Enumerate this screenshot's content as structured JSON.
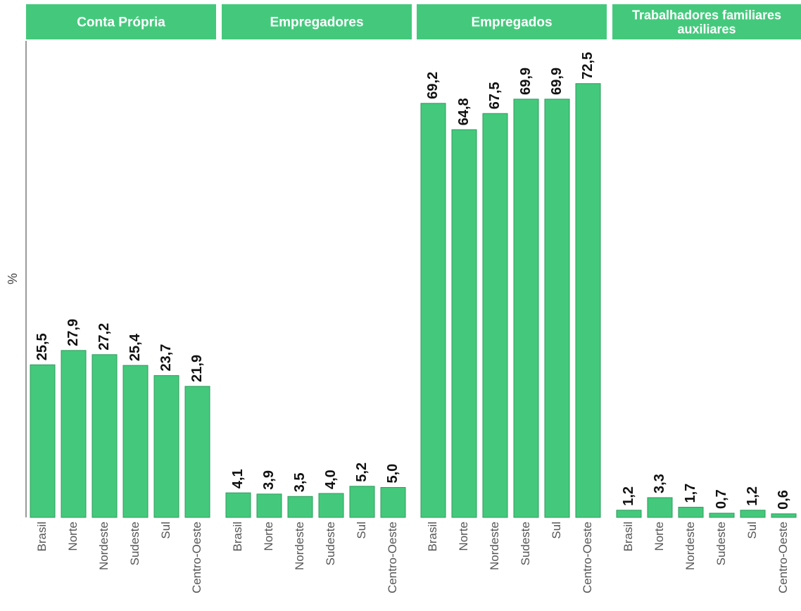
{
  "chart_data": {
    "type": "bar",
    "ylabel": "%",
    "ylim": [
      0,
      80
    ],
    "grid": false,
    "colors": {
      "bar": "#44c97c",
      "bar_edge": "#2e9a5c",
      "strip": "#44c97c",
      "axis": "#9a9a9a"
    },
    "categories": [
      "Brasil",
      "Norte",
      "Nordeste",
      "Sudeste",
      "Sul",
      "Centro-Oeste"
    ],
    "panels": [
      {
        "title_lines": [
          "Conta Própria"
        ],
        "values": [
          25.5,
          27.9,
          27.2,
          25.4,
          23.7,
          21.9
        ],
        "labels": [
          "25,5",
          "27,9",
          "27,2",
          "25,4",
          "23,7",
          "21,9"
        ]
      },
      {
        "title_lines": [
          "Empregadores"
        ],
        "values": [
          4.1,
          3.9,
          3.5,
          4.0,
          5.2,
          5.0
        ],
        "labels": [
          "4,1",
          "3,9",
          "3,5",
          "4,0",
          "5,2",
          "5,0"
        ]
      },
      {
        "title_lines": [
          "Empregados"
        ],
        "values": [
          69.2,
          64.8,
          67.5,
          69.9,
          69.9,
          72.5
        ],
        "labels": [
          "69,2",
          "64,8",
          "67,5",
          "69,9",
          "69,9",
          "72,5"
        ]
      },
      {
        "title_lines": [
          "Trabalhadores familiares",
          "auxiliares"
        ],
        "values": [
          1.2,
          3.3,
          1.7,
          0.7,
          1.2,
          0.6
        ],
        "labels": [
          "1,2",
          "3,3",
          "1,7",
          "0,7",
          "1,2",
          "0,6"
        ]
      }
    ]
  }
}
